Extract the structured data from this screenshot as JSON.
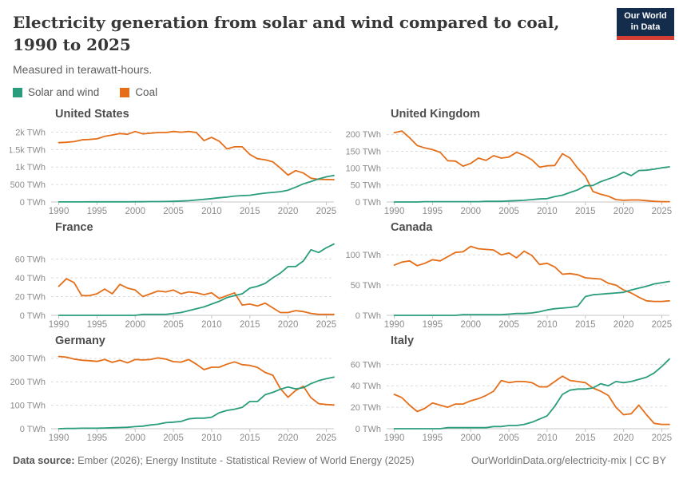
{
  "header": {
    "title": "Electricity generation from solar and wind compared to coal, 1990 to 2025",
    "subtitle": "Measured in terawatt-hours.",
    "logo_line1": "Our World",
    "logo_line2": "in Data"
  },
  "legend": [
    {
      "label": "Solar and wind",
      "color": "#2a9d7c"
    },
    {
      "label": "Coal",
      "color": "#e56e19"
    }
  ],
  "footer": {
    "source_label": "Data source:",
    "source_text": " Ember (2026); Energy Institute - Statistical Review of World Energy (2025)",
    "link_text": "OurWorldinData.org/electricity-mix | CC BY"
  },
  "chart_data": {
    "type": "line",
    "grid": true,
    "legend_position": "top-left",
    "xlabel": "",
    "ylabel": "TWh",
    "x_range": [
      1989,
      2026
    ],
    "x_ticks": [
      1990,
      1995,
      2000,
      2005,
      2010,
      2015,
      2020,
      2025
    ],
    "years": [
      1990,
      1991,
      1992,
      1993,
      1994,
      1995,
      1996,
      1997,
      1998,
      1999,
      2000,
      2001,
      2002,
      2003,
      2004,
      2005,
      2006,
      2007,
      2008,
      2009,
      2010,
      2011,
      2012,
      2013,
      2014,
      2015,
      2016,
      2017,
      2018,
      2019,
      2020,
      2021,
      2022,
      2023,
      2024,
      2025,
      2026
    ],
    "colors": {
      "solar_wind": "#2a9d7c",
      "coal": "#e56e19"
    },
    "series_names": [
      "Solar and wind",
      "Coal"
    ],
    "charts": [
      {
        "title": "United States",
        "ylim": [
          0,
          2150
        ],
        "y_ticks": [
          {
            "v": 0,
            "label": "0 TWh"
          },
          {
            "v": 500,
            "label": "500 TWh"
          },
          {
            "v": 1000,
            "label": "1k TWh"
          },
          {
            "v": 1500,
            "label": "1.5k TWh"
          },
          {
            "v": 2000,
            "label": "2k TWh"
          }
        ],
        "coal": [
          1700,
          1710,
          1730,
          1780,
          1790,
          1810,
          1880,
          1920,
          1960,
          1940,
          2020,
          1950,
          1970,
          1990,
          1990,
          2020,
          2000,
          2020,
          1990,
          1760,
          1850,
          1740,
          1520,
          1580,
          1580,
          1360,
          1240,
          1210,
          1150,
          970,
          770,
          900,
          830,
          680,
          650,
          645,
          640
        ],
        "solar_wind": [
          3,
          3,
          3,
          3,
          4,
          4,
          4,
          4,
          4,
          5,
          6,
          7,
          11,
          12,
          14,
          18,
          27,
          36,
          57,
          75,
          95,
          121,
          140,
          169,
          182,
          193,
          227,
          254,
          275,
          296,
          338,
          425,
          520,
          585,
          660,
          720,
          760
        ]
      },
      {
        "title": "United Kingdom",
        "ylim": [
          0,
          222
        ],
        "y_ticks": [
          {
            "v": 0,
            "label": "0 TWh"
          },
          {
            "v": 50,
            "label": "50 TWh"
          },
          {
            "v": 100,
            "label": "100 TWh"
          },
          {
            "v": 150,
            "label": "150 TWh"
          },
          {
            "v": 200,
            "label": "200 TWh"
          }
        ],
        "coal": [
          205,
          210,
          190,
          167,
          160,
          155,
          147,
          122,
          121,
          106,
          114,
          130,
          123,
          137,
          130,
          133,
          147,
          138,
          125,
          103,
          107,
          108,
          143,
          130,
          100,
          76,
          31,
          23,
          17,
          7,
          5,
          6,
          6,
          4,
          2,
          1,
          1
        ],
        "solar_wind": [
          0,
          0,
          0,
          0,
          1,
          1,
          1,
          1,
          1,
          1,
          1,
          1,
          2,
          2,
          2,
          3,
          4,
          5,
          7,
          9,
          10,
          16,
          20,
          28,
          36,
          48,
          49,
          60,
          68,
          76,
          88,
          78,
          93,
          94,
          97,
          101,
          104
        ]
      },
      {
        "title": "France",
        "ylim": [
          0,
          80
        ],
        "y_ticks": [
          {
            "v": 0,
            "label": "0 TWh"
          },
          {
            "v": 20,
            "label": "20 TWh"
          },
          {
            "v": 40,
            "label": "40 TWh"
          },
          {
            "v": 60,
            "label": "60 TWh"
          }
        ],
        "coal": [
          31,
          39,
          35,
          21,
          21,
          23,
          28,
          23,
          33,
          29,
          27,
          20,
          23,
          26,
          25,
          27,
          23,
          25,
          24,
          22,
          24,
          18,
          21,
          24,
          11,
          12,
          10,
          13,
          8,
          3,
          3,
          5,
          4,
          2,
          1,
          1,
          1
        ],
        "solar_wind": [
          0,
          0,
          0,
          0,
          0,
          0,
          0,
          0,
          0,
          0,
          0,
          1,
          1,
          1,
          1,
          2,
          3,
          5,
          7,
          9,
          12,
          15,
          19,
          21,
          23,
          29,
          31,
          34,
          40,
          45,
          52,
          52,
          58,
          70,
          67,
          72,
          76
        ]
      },
      {
        "title": "Canada",
        "ylim": [
          0,
          124
        ],
        "y_ticks": [
          {
            "v": 0,
            "label": "0 TWh"
          },
          {
            "v": 50,
            "label": "50 TWh"
          },
          {
            "v": 100,
            "label": "100 TWh"
          }
        ],
        "coal": [
          83,
          88,
          90,
          82,
          86,
          92,
          90,
          97,
          104,
          105,
          114,
          110,
          109,
          108,
          100,
          103,
          95,
          106,
          99,
          84,
          86,
          80,
          68,
          69,
          67,
          62,
          61,
          60,
          53,
          50,
          42,
          37,
          30,
          24,
          23,
          23,
          24
        ],
        "solar_wind": [
          0,
          0,
          0,
          0,
          0,
          0,
          0,
          0,
          0,
          1,
          1,
          1,
          1,
          1,
          1,
          2,
          3,
          3,
          4,
          6,
          9,
          11,
          12,
          13,
          15,
          31,
          34,
          35,
          36,
          37,
          38,
          42,
          45,
          48,
          52,
          54,
          56
        ]
      },
      {
        "title": "Germany",
        "ylim": [
          0,
          320
        ],
        "y_ticks": [
          {
            "v": 0,
            "label": "0 TWh"
          },
          {
            "v": 100,
            "label": "100 TWh"
          },
          {
            "v": 200,
            "label": "200 TWh"
          },
          {
            "v": 300,
            "label": "300 TWh"
          }
        ],
        "coal": [
          308,
          305,
          297,
          292,
          290,
          287,
          295,
          283,
          292,
          281,
          295,
          293,
          295,
          302,
          297,
          286,
          284,
          295,
          275,
          252,
          262,
          262,
          275,
          285,
          273,
          270,
          261,
          240,
          228,
          171,
          134,
          163,
          181,
          132,
          107,
          103,
          101
        ],
        "solar_wind": [
          0,
          1,
          1,
          2,
          2,
          2,
          3,
          4,
          5,
          6,
          9,
          11,
          16,
          19,
          26,
          28,
          31,
          42,
          45,
          45,
          49,
          68,
          78,
          83,
          91,
          116,
          116,
          145,
          155,
          168,
          178,
          170,
          175,
          192,
          205,
          213,
          220
        ]
      },
      {
        "title": "Italy",
        "ylim": [
          0,
          70
        ],
        "y_ticks": [
          {
            "v": 0,
            "label": "0 TWh"
          },
          {
            "v": 20,
            "label": "20 TWh"
          },
          {
            "v": 40,
            "label": "40 TWh"
          },
          {
            "v": 60,
            "label": "60 TWh"
          }
        ],
        "coal": [
          32,
          29,
          22,
          16,
          19,
          24,
          22,
          20,
          23,
          23,
          26,
          28,
          31,
          35,
          45,
          43,
          44,
          44,
          43,
          39,
          39,
          44,
          49,
          45,
          44,
          43,
          38,
          35,
          31,
          20,
          13,
          14,
          22,
          13,
          5,
          4,
          4
        ],
        "solar_wind": [
          0,
          0,
          0,
          0,
          0,
          0,
          0,
          1,
          1,
          1,
          1,
          1,
          1,
          2,
          2,
          3,
          3,
          4,
          6,
          9,
          12,
          21,
          32,
          36,
          37,
          37,
          38,
          42,
          40,
          44,
          43,
          44,
          46,
          48,
          52,
          58,
          65
        ]
      }
    ]
  }
}
